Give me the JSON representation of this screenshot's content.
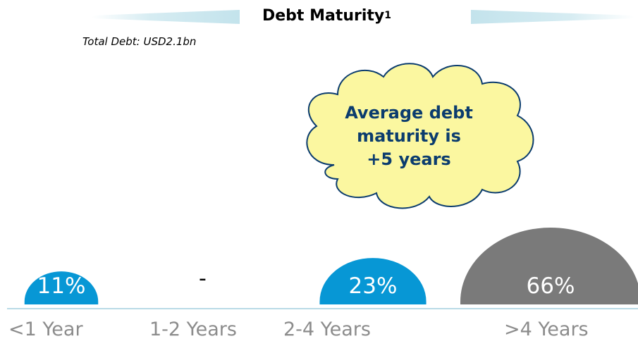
{
  "chart_data": {
    "type": "bar",
    "title": "Debt Maturity",
    "title_superscript": "1",
    "subtitle": "Total Debt: USD2.1bn",
    "categories": [
      "<1 Year",
      "1-2 Years",
      "2-4 Years",
      ">4 Years"
    ],
    "values": [
      11,
      0,
      23,
      66
    ],
    "value_labels": [
      "11%",
      "-",
      "23%",
      "66%"
    ],
    "annotation": {
      "lines": [
        "Average debt",
        "maturity is",
        "+5 years"
      ]
    },
    "colors": {
      "blue": "#0797d5",
      "gray": "#7a7a7a",
      "cloud_fill": "#fbf7a0",
      "cloud_text": "#0b3c6e",
      "category_text": "#8c8c8c"
    }
  }
}
